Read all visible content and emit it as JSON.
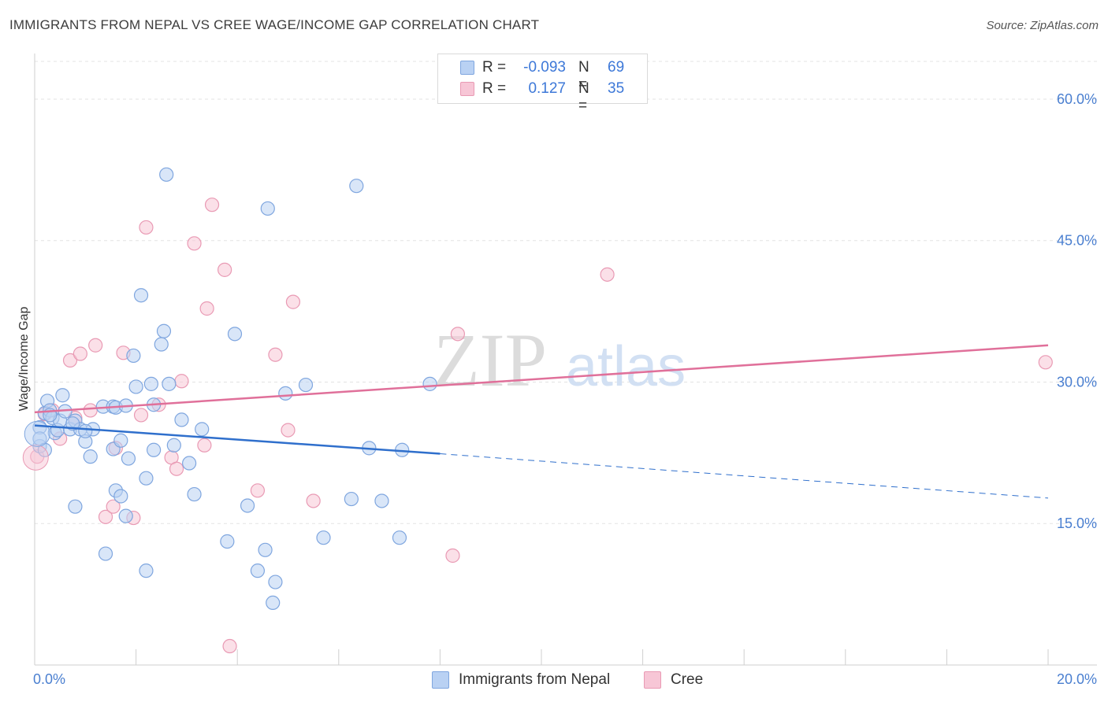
{
  "header": {
    "title": "IMMIGRANTS FROM NEPAL VS CREE WAGE/INCOME GAP CORRELATION CHART",
    "source": "Source: ZipAtlas.com"
  },
  "legend": {
    "rows": [
      {
        "r_label": "R =",
        "r_value": "-0.093",
        "n_label": "N =",
        "n_value": "69"
      },
      {
        "r_label": "R =",
        "r_value": "0.127",
        "n_label": "N =",
        "n_value": "35"
      }
    ]
  },
  "bottom_legend": [
    "Immigrants from Nepal",
    "Cree"
  ],
  "watermark": {
    "zip": "ZIP",
    "atlas": "atlas"
  },
  "colors": {
    "nepal_fill": "#b9d1f3",
    "nepal_stroke": "#7fa6df",
    "nepal_line": "#2f6fcc",
    "cree_fill": "#f7c6d6",
    "cree_stroke": "#e99ab4",
    "cree_line": "#e0709a",
    "tick_label": "#4a7fd0",
    "grid": "#e3e3e3"
  },
  "chart_data": {
    "type": "scatter",
    "title": "IMMIGRANTS FROM NEPAL VS CREE WAGE/INCOME GAP CORRELATION CHART",
    "xlabel": "",
    "ylabel": "Wage/Income Gap",
    "xlim": [
      0,
      20
    ],
    "ylim": [
      0,
      64
    ],
    "x_tick_labels": [
      "0.0%",
      "20.0%"
    ],
    "y_ticks": [
      15,
      30,
      45,
      60
    ],
    "y_tick_labels": [
      "15.0%",
      "30.0%",
      "45.0%",
      "60.0%"
    ],
    "grid": true,
    "legend_position": "top-center",
    "series": [
      {
        "name": "Immigrants from Nepal",
        "r": -0.093,
        "n": 69,
        "trend": {
          "x0": 0,
          "y0": 25.4,
          "x1": 8,
          "y1": 22.4,
          "x_dash_end": 20,
          "y_dash_end": 17.7
        },
        "points": [
          [
            0.1,
            25.2
          ],
          [
            0.1,
            23.2
          ],
          [
            0.1,
            24.0
          ],
          [
            0.2,
            26.7
          ],
          [
            0.25,
            28.0
          ],
          [
            0.3,
            27.0
          ],
          [
            0.35,
            26.2
          ],
          [
            0.4,
            24.6
          ],
          [
            0.45,
            24.9
          ],
          [
            0.5,
            25.9
          ],
          [
            0.55,
            28.6
          ],
          [
            0.6,
            26.9
          ],
          [
            0.7,
            25.0
          ],
          [
            0.8,
            25.9
          ],
          [
            0.8,
            16.8
          ],
          [
            0.9,
            25.0
          ],
          [
            1.0,
            23.7
          ],
          [
            1.15,
            25.0
          ],
          [
            1.1,
            22.1
          ],
          [
            1.35,
            27.4
          ],
          [
            1.55,
            27.4
          ],
          [
            1.6,
            27.3
          ],
          [
            1.55,
            22.9
          ],
          [
            1.7,
            23.8
          ],
          [
            1.8,
            27.5
          ],
          [
            1.85,
            21.9
          ],
          [
            1.8,
            15.8
          ],
          [
            1.95,
            32.8
          ],
          [
            2.0,
            29.5
          ],
          [
            2.1,
            39.2
          ],
          [
            2.2,
            19.8
          ],
          [
            2.3,
            29.8
          ],
          [
            2.35,
            22.8
          ],
          [
            2.35,
            27.6
          ],
          [
            2.5,
            34.0
          ],
          [
            2.55,
            35.4
          ],
          [
            2.6,
            52.0
          ],
          [
            2.65,
            29.8
          ],
          [
            2.75,
            23.3
          ],
          [
            2.9,
            26.0
          ],
          [
            3.05,
            21.4
          ],
          [
            3.15,
            18.1
          ],
          [
            3.3,
            25.0
          ],
          [
            3.8,
            13.1
          ],
          [
            3.95,
            35.1
          ],
          [
            4.2,
            16.9
          ],
          [
            4.4,
            10.0
          ],
          [
            4.55,
            12.2
          ],
          [
            4.6,
            48.4
          ],
          [
            4.75,
            8.8
          ],
          [
            4.7,
            6.6
          ],
          [
            4.95,
            28.8
          ],
          [
            5.35,
            29.7
          ],
          [
            5.7,
            13.5
          ],
          [
            6.25,
            17.6
          ],
          [
            6.35,
            50.8
          ],
          [
            6.6,
            23.0
          ],
          [
            6.85,
            17.4
          ],
          [
            7.2,
            13.5
          ],
          [
            7.25,
            22.8
          ],
          [
            7.8,
            29.8
          ],
          [
            1.4,
            11.8
          ],
          [
            1.6,
            18.5
          ],
          [
            1.7,
            17.9
          ],
          [
            2.2,
            10.0
          ],
          [
            0.3,
            26.5
          ],
          [
            0.75,
            25.6
          ],
          [
            0.2,
            22.8
          ],
          [
            1.0,
            24.8
          ]
        ]
      },
      {
        "name": "Cree",
        "r": 0.127,
        "n": 35,
        "trend": {
          "x0": 0,
          "y0": 26.8,
          "x1": 20,
          "y1": 33.9
        },
        "points": [
          [
            0.05,
            22.1
          ],
          [
            0.2,
            26.6
          ],
          [
            0.35,
            27.0
          ],
          [
            0.5,
            24.0
          ],
          [
            0.7,
            32.3
          ],
          [
            0.8,
            26.2
          ],
          [
            0.9,
            33.0
          ],
          [
            1.1,
            27.0
          ],
          [
            1.2,
            33.9
          ],
          [
            1.4,
            15.7
          ],
          [
            1.55,
            16.8
          ],
          [
            1.6,
            23.0
          ],
          [
            1.75,
            33.1
          ],
          [
            1.95,
            15.6
          ],
          [
            2.1,
            26.5
          ],
          [
            2.2,
            46.4
          ],
          [
            2.45,
            27.6
          ],
          [
            2.7,
            22.0
          ],
          [
            2.8,
            20.8
          ],
          [
            2.9,
            30.1
          ],
          [
            3.15,
            44.7
          ],
          [
            3.35,
            23.3
          ],
          [
            3.4,
            37.8
          ],
          [
            3.5,
            48.8
          ],
          [
            3.75,
            41.9
          ],
          [
            3.85,
            2.0
          ],
          [
            4.4,
            18.5
          ],
          [
            4.75,
            32.9
          ],
          [
            5.0,
            24.9
          ],
          [
            5.1,
            38.5
          ],
          [
            5.5,
            17.4
          ],
          [
            8.25,
            11.6
          ],
          [
            8.35,
            35.1
          ],
          [
            11.3,
            41.4
          ],
          [
            19.95,
            32.1
          ]
        ]
      }
    ]
  }
}
